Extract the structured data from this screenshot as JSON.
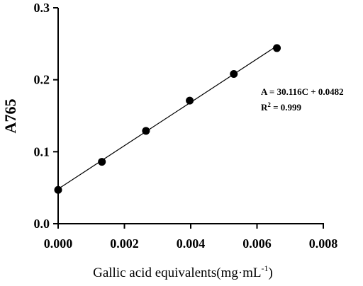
{
  "chart_data": {
    "type": "scatter",
    "title": "",
    "ylabel": "A765",
    "xlabel_main": "Gallic acid equivalents(mg·mL",
    "xlabel_sup": "-1",
    "xlabel_close": ")",
    "xlim": [
      0,
      0.008
    ],
    "ylim": [
      0,
      0.3
    ],
    "xticks": [
      "0.000",
      "0.002",
      "0.004",
      "0.006",
      "0.008"
    ],
    "xtick_values": [
      0,
      0.002,
      0.004,
      0.006,
      0.008
    ],
    "yticks": [
      "0.0",
      "0.1",
      "0.2",
      "0.3"
    ],
    "ytick_values": [
      0,
      0.1,
      0.2,
      0.3
    ],
    "x": [
      0,
      0.00132,
      0.00265,
      0.00397,
      0.0053,
      0.0066
    ],
    "y": [
      0.047,
      0.086,
      0.129,
      0.171,
      0.208,
      0.244
    ],
    "fit_line": {
      "slope": 30.116,
      "intercept": 0.0482
    },
    "equation": "A = 30.116C + 0.0482",
    "r2_prefix": "R",
    "r2_sup": "2",
    "r2_value": " = 0.999",
    "grid": false,
    "legend": false
  }
}
